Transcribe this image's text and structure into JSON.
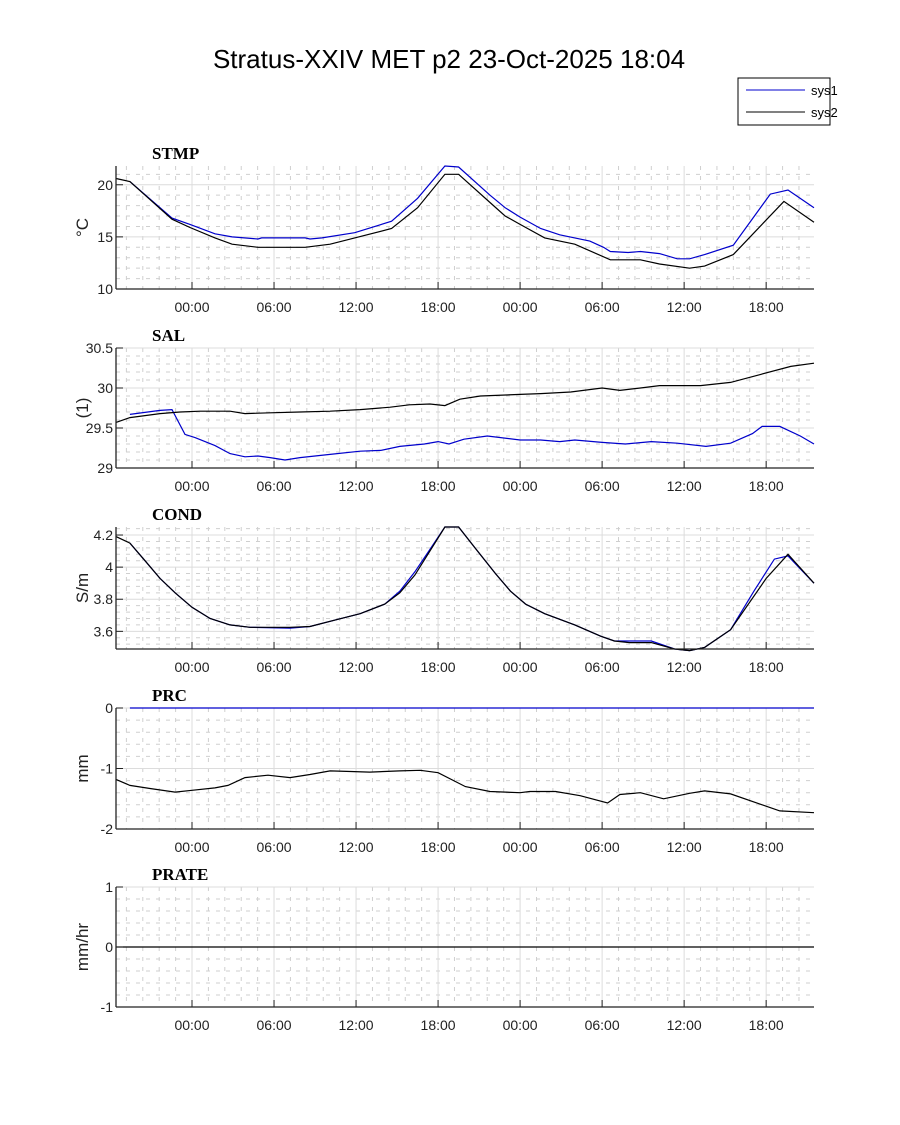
{
  "figure": {
    "title": "Stratus-XXIV MET p2 23-Oct-2025 18:04"
  },
  "legend": {
    "placement": "top-right",
    "entries": [
      {
        "label": "sys1",
        "color": "#0000cc"
      },
      {
        "label": "sys2",
        "color": "#000000"
      }
    ]
  },
  "chart_data": [
    {
      "type": "line",
      "title": "STMP",
      "xlabel": "",
      "ylabel": "°C",
      "x_units": "hours relative to first 00:00 tick",
      "xlim": [
        -5.56,
        45.5
      ],
      "x_ticks": [
        0,
        6,
        12,
        18,
        24,
        30,
        36,
        42
      ],
      "x_tick_labels": [
        "00:00",
        "06:00",
        "12:00",
        "18:00",
        "00:00",
        "06:00",
        "12:00",
        "18:00"
      ],
      "ylim": [
        10,
        21.8
      ],
      "y_ticks": [
        10,
        15,
        20
      ],
      "y_tick_labels": [
        "10",
        "15",
        "20"
      ],
      "grid": true,
      "series": [
        {
          "name": "sys1",
          "color": "#0000cc",
          "x": [
            -4.54,
            -1.46,
            -0.15,
            1.68,
            2.93,
            4.83,
            5.1,
            8.27,
            8.63,
            9.51,
            11.9,
            14.6,
            16.5,
            18.5,
            19.5,
            21.8,
            22.9,
            24.0,
            25.5,
            26.9,
            29.1,
            30.1,
            30.6,
            31.9,
            32.8,
            34.2,
            35.5,
            36.4,
            37.5,
            39.6,
            42.3,
            43.6,
            45.5
          ],
          "y": [
            20.3,
            16.8,
            16.2,
            15.3,
            15.0,
            14.8,
            14.9,
            14.9,
            14.8,
            14.9,
            15.4,
            16.5,
            18.7,
            21.8,
            21.7,
            19.0,
            17.8,
            16.9,
            15.8,
            15.2,
            14.6,
            14.0,
            13.6,
            13.5,
            13.6,
            13.4,
            12.9,
            12.9,
            13.3,
            14.2,
            19.1,
            19.5,
            17.8
          ]
        },
        {
          "name": "sys2",
          "color": "#000000",
          "x": [
            -5.56,
            -4.54,
            -1.46,
            -0.15,
            1.68,
            2.93,
            4.83,
            8.27,
            10.1,
            11.9,
            14.6,
            16.5,
            18.5,
            19.5,
            21.8,
            22.9,
            24.0,
            25.8,
            28.0,
            30.6,
            32.8,
            34.2,
            36.4,
            37.5,
            39.6,
            43.3,
            45.5
          ],
          "y": [
            20.6,
            20.3,
            16.7,
            15.9,
            14.9,
            14.3,
            14.0,
            14.0,
            14.3,
            14.9,
            15.8,
            17.8,
            21.0,
            21.0,
            18.3,
            17.0,
            16.2,
            14.9,
            14.3,
            12.8,
            12.8,
            12.4,
            12.0,
            12.2,
            13.3,
            18.4,
            16.4
          ]
        }
      ]
    },
    {
      "type": "line",
      "title": "SAL",
      "xlabel": "",
      "ylabel": "(1)",
      "x_units": "hours relative to first 00:00 tick",
      "xlim": [
        -5.56,
        45.5
      ],
      "x_ticks": [
        0,
        6,
        12,
        18,
        24,
        30,
        36,
        42
      ],
      "x_tick_labels": [
        "00:00",
        "06:00",
        "12:00",
        "18:00",
        "00:00",
        "06:00",
        "12:00",
        "18:00"
      ],
      "ylim": [
        29,
        30.5
      ],
      "y_ticks": [
        29,
        29.5,
        30,
        30.5
      ],
      "y_tick_labels": [
        "29",
        "29.5",
        "30",
        "30.5"
      ],
      "grid": true,
      "series": [
        {
          "name": "sys1",
          "color": "#0000cc",
          "x": [
            -4.54,
            -2.34,
            -1.46,
            -0.51,
            0.22,
            1.68,
            2.78,
            3.88,
            4.83,
            5.71,
            6.8,
            7.9,
            10.1,
            12.3,
            13.8,
            15.2,
            17.0,
            18.0,
            18.8,
            19.9,
            21.6,
            24.0,
            25.5,
            26.9,
            28.0,
            30.0,
            31.7,
            33.6,
            35.5,
            37.6,
            39.4,
            41.0,
            41.7,
            43.0,
            44.5,
            45.5
          ],
          "y": [
            29.67,
            29.72,
            29.73,
            29.42,
            29.38,
            29.28,
            29.18,
            29.14,
            29.15,
            29.13,
            29.1,
            29.13,
            29.17,
            29.21,
            29.22,
            29.27,
            29.3,
            29.33,
            29.3,
            29.36,
            29.4,
            29.35,
            29.35,
            29.33,
            29.35,
            29.32,
            29.3,
            29.33,
            29.31,
            29.27,
            29.31,
            29.43,
            29.52,
            29.52,
            29.4,
            29.3
          ]
        },
        {
          "name": "sys2",
          "color": "#000000",
          "x": [
            -5.56,
            -4.54,
            -2.34,
            -0.88,
            0.59,
            2.78,
            3.88,
            5.71,
            7.9,
            10.1,
            12.3,
            14.5,
            15.9,
            17.4,
            18.5,
            19.6,
            21.1,
            24.0,
            25.5,
            27.7,
            30.0,
            31.3,
            32.8,
            34.2,
            37.2,
            39.4,
            41.6,
            43.8,
            45.5
          ],
          "y": [
            29.57,
            29.63,
            29.68,
            29.7,
            29.71,
            29.71,
            29.68,
            29.69,
            29.7,
            29.71,
            29.73,
            29.76,
            29.79,
            29.8,
            29.78,
            29.86,
            29.9,
            29.92,
            29.93,
            29.95,
            30.0,
            29.97,
            30.0,
            30.03,
            30.03,
            30.07,
            30.17,
            30.27,
            30.31
          ]
        }
      ]
    },
    {
      "type": "line",
      "title": "COND",
      "xlabel": "",
      "ylabel": "S/m",
      "x_units": "hours relative to first 00:00 tick",
      "xlim": [
        -5.56,
        45.5
      ],
      "x_ticks": [
        0,
        6,
        12,
        18,
        24,
        30,
        36,
        42
      ],
      "x_tick_labels": [
        "00:00",
        "06:00",
        "12:00",
        "18:00",
        "00:00",
        "06:00",
        "12:00",
        "18:00"
      ],
      "ylim": [
        3.49,
        4.25
      ],
      "y_ticks": [
        3.6,
        3.8,
        4.0,
        4.2
      ],
      "y_tick_labels": [
        "3.6",
        "3.8",
        "4",
        "4.2"
      ],
      "grid": true,
      "series": [
        {
          "name": "sys1",
          "color": "#0000cc",
          "x": [
            -4.54,
            -3.44,
            -2.34,
            -1.24,
            0.0,
            1.32,
            2.78,
            4.24,
            7.17,
            8.63,
            10.46,
            12.3,
            14.1,
            15.2,
            16.3,
            17.4,
            18.5,
            19.5,
            20.7,
            22.2,
            23.3,
            24.4,
            25.8,
            28.0,
            29.9,
            30.9,
            32.0,
            33.6,
            35.3,
            36.4,
            37.5,
            39.4,
            41.1,
            42.6,
            43.6,
            45.5
          ],
          "y": [
            4.15,
            4.04,
            3.93,
            3.84,
            3.75,
            3.68,
            3.64,
            3.625,
            3.62,
            3.63,
            3.67,
            3.71,
            3.77,
            3.85,
            3.97,
            4.11,
            4.25,
            4.25,
            4.12,
            3.96,
            3.85,
            3.77,
            3.71,
            3.64,
            3.57,
            3.54,
            3.54,
            3.54,
            3.49,
            3.48,
            3.5,
            3.61,
            3.85,
            4.05,
            4.07,
            3.9
          ]
        },
        {
          "name": "sys2",
          "color": "#000000",
          "x": [
            -5.56,
            -4.54,
            -3.44,
            -2.34,
            -1.24,
            0.0,
            1.32,
            2.78,
            4.24,
            7.17,
            8.63,
            10.46,
            12.3,
            14.1,
            15.2,
            16.3,
            17.4,
            18.5,
            19.5,
            20.7,
            22.2,
            23.3,
            24.4,
            25.8,
            28.0,
            29.9,
            30.9,
            32.0,
            33.6,
            35.3,
            36.4,
            37.5,
            39.4,
            42.0,
            43.6,
            45.5
          ],
          "y": [
            4.19,
            4.15,
            4.04,
            3.93,
            3.84,
            3.75,
            3.68,
            3.64,
            3.625,
            3.625,
            3.63,
            3.67,
            3.71,
            3.77,
            3.84,
            3.95,
            4.1,
            4.25,
            4.25,
            4.12,
            3.96,
            3.85,
            3.77,
            3.71,
            3.64,
            3.57,
            3.54,
            3.53,
            3.53,
            3.49,
            3.48,
            3.5,
            3.61,
            3.93,
            4.08,
            3.9
          ]
        }
      ]
    },
    {
      "type": "line",
      "title": "PRC",
      "xlabel": "",
      "ylabel": "mm",
      "x_units": "hours relative to first 00:00 tick",
      "xlim": [
        -5.56,
        45.5
      ],
      "x_ticks": [
        0,
        6,
        12,
        18,
        24,
        30,
        36,
        42
      ],
      "x_tick_labels": [
        "00:00",
        "06:00",
        "12:00",
        "18:00",
        "00:00",
        "06:00",
        "12:00",
        "18:00"
      ],
      "ylim": [
        -2,
        0
      ],
      "y_ticks": [
        -2,
        -1,
        0
      ],
      "y_tick_labels": [
        "-2",
        "-1",
        "0"
      ],
      "grid": true,
      "series": [
        {
          "name": "sys1",
          "color": "#0000cc",
          "x": [
            -4.54,
            45.5
          ],
          "y": [
            0,
            0
          ]
        },
        {
          "name": "sys2",
          "color": "#000000",
          "x": [
            -5.56,
            -4.54,
            -3.07,
            -1.24,
            0.0,
            1.68,
            2.63,
            3.88,
            5.56,
            7.17,
            8.63,
            10.1,
            11.6,
            13.0,
            15.2,
            16.7,
            18.0,
            20.0,
            21.8,
            24.0,
            24.7,
            26.6,
            28.4,
            30.4,
            31.3,
            32.8,
            34.5,
            36.4,
            37.5,
            39.4,
            43.0,
            45.5
          ],
          "y": [
            -1.18,
            -1.28,
            -1.33,
            -1.39,
            -1.36,
            -1.32,
            -1.28,
            -1.15,
            -1.11,
            -1.15,
            -1.1,
            -1.04,
            -1.05,
            -1.06,
            -1.04,
            -1.03,
            -1.07,
            -1.3,
            -1.38,
            -1.4,
            -1.38,
            -1.38,
            -1.45,
            -1.57,
            -1.43,
            -1.4,
            -1.5,
            -1.41,
            -1.37,
            -1.42,
            -1.7,
            -1.73
          ]
        }
      ]
    },
    {
      "type": "line",
      "title": "PRATE",
      "xlabel": "",
      "ylabel": "mm/hr",
      "x_units": "hours relative to first 00:00 tick",
      "xlim": [
        -5.56,
        45.5
      ],
      "x_ticks": [
        0,
        6,
        12,
        18,
        24,
        30,
        36,
        42
      ],
      "x_tick_labels": [
        "00:00",
        "06:00",
        "12:00",
        "18:00",
        "00:00",
        "06:00",
        "12:00",
        "18:00"
      ],
      "ylim": [
        -1,
        1
      ],
      "y_ticks": [
        -1,
        0,
        1
      ],
      "y_tick_labels": [
        "-1",
        "0",
        "1"
      ],
      "grid": true,
      "series": [
        {
          "name": "sys2",
          "color": "#000000",
          "x": [
            -5.56,
            45.5
          ],
          "y": [
            0,
            0
          ]
        }
      ]
    }
  ]
}
